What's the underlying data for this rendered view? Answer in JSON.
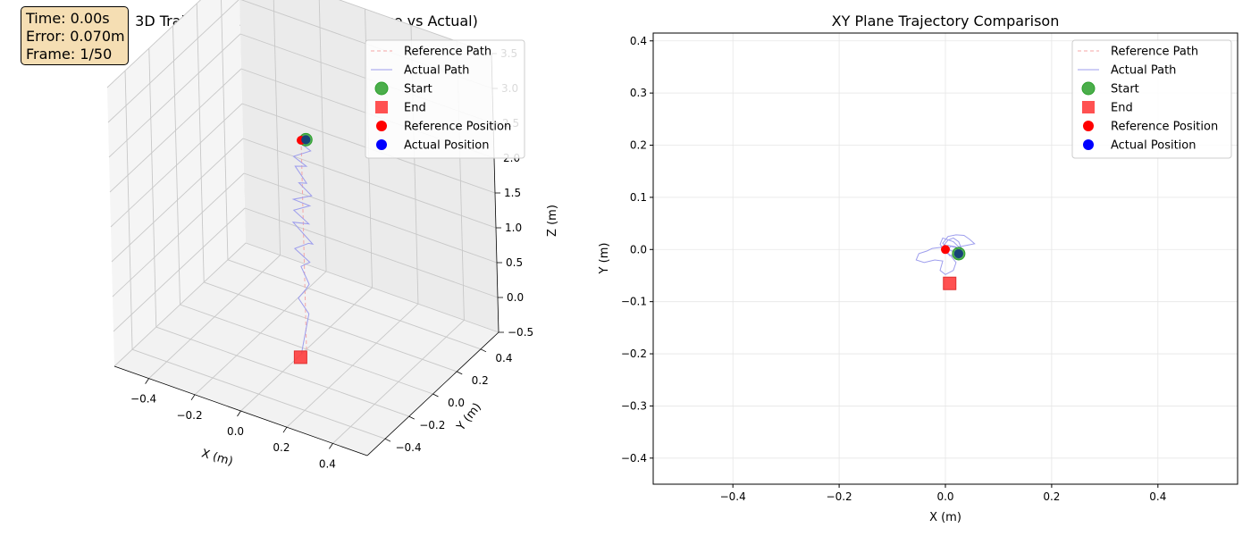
{
  "info_box": {
    "time": "Time: 0.00s",
    "error": "Error: 0.070m",
    "frame": "Frame: 1/50"
  },
  "legend_entries": [
    {
      "label": "Reference Path",
      "kind": "dash-line",
      "color": "#f4a6a6"
    },
    {
      "label": "Actual Path",
      "kind": "line",
      "color": "#9d9ded"
    },
    {
      "label": "Start",
      "kind": "circle",
      "color": "#2ca02c"
    },
    {
      "label": "End",
      "kind": "square",
      "color": "#ff3333"
    },
    {
      "label": "Reference Position",
      "kind": "dot",
      "color": "#ff0000"
    },
    {
      "label": "Actual Position",
      "kind": "dot",
      "color": "#0000ff"
    }
  ],
  "chart_data": [
    {
      "type": "scatter",
      "projection": "3d",
      "title": "3D Trajectory Comparison (Reference vs Actual)",
      "xlabel": "X (m)",
      "ylabel": "Y (m)",
      "zlabel": "Z (m)",
      "xlim": [
        -0.55,
        0.55
      ],
      "ylim": [
        -0.55,
        0.55
      ],
      "zlim": [
        -0.5,
        3.5
      ],
      "x_ticks": [
        "−0.4",
        "−0.2",
        "0.0",
        "0.2",
        "0.4"
      ],
      "y_ticks": [
        "−0.4",
        "−0.2",
        "0.0",
        "0.2",
        "0.4"
      ],
      "z_ticks": [
        "−0.5",
        "0.0",
        "0.5",
        "1.0",
        "1.5",
        "2.0",
        "2.5",
        "3.0",
        "3.5"
      ],
      "grid": true,
      "legend_position": "top-right",
      "series": [
        {
          "name": "Reference Path",
          "style": "dashed",
          "color": "#f4a6a6",
          "x": [
            0.0,
            0.0,
            0.0,
            0.0,
            0.0,
            0.0,
            0.0
          ],
          "y": [
            0.0,
            0.0,
            0.0,
            0.0,
            0.0,
            0.0,
            0.0
          ],
          "z": [
            2.5,
            2.0,
            1.5,
            1.0,
            0.5,
            0.0,
            -0.5
          ]
        },
        {
          "name": "Actual Path",
          "style": "solid",
          "color": "#9d9ded",
          "x": [
            0.02,
            -0.02,
            0.03,
            -0.03,
            0.02,
            -0.04,
            0.03,
            -0.02,
            0.04,
            -0.03,
            0.02,
            -0.04,
            0.03,
            -0.05,
            0.05,
            0.01,
            -0.04,
            0.03,
            -0.02,
            0.03,
            0.0,
            -0.03,
            0.02,
            0.01
          ],
          "y": [
            -0.01,
            0.01,
            0.02,
            -0.01,
            0.0,
            0.02,
            -0.02,
            0.01,
            0.0,
            -0.02,
            0.02,
            0.0,
            -0.01,
            0.01,
            -0.02,
            0.02,
            0.0,
            -0.01,
            0.01,
            -0.02,
            0.01,
            0.0,
            -0.01,
            -0.06
          ],
          "z": [
            2.55,
            2.45,
            2.35,
            2.25,
            2.15,
            2.05,
            1.95,
            1.85,
            1.75,
            1.65,
            1.55,
            1.45,
            1.35,
            1.25,
            1.1,
            1.0,
            0.9,
            0.8,
            0.65,
            0.5,
            0.35,
            0.2,
            0.05,
            -0.45
          ]
        },
        {
          "name": "Start",
          "marker": "circle",
          "color": "#2ca02c",
          "x": [
            0.025
          ],
          "y": [
            -0.008
          ],
          "z": [
            2.55
          ]
        },
        {
          "name": "End",
          "marker": "square",
          "color": "#ff3333",
          "x": [
            0.008
          ],
          "y": [
            -0.065
          ],
          "z": [
            -0.5
          ]
        },
        {
          "name": "Reference Position",
          "marker": "dot",
          "color": "#ff0000",
          "x": [
            0.0
          ],
          "y": [
            0.0
          ],
          "z": [
            2.5
          ]
        },
        {
          "name": "Actual Position",
          "marker": "dot",
          "color": "#0000ff",
          "x": [
            0.025
          ],
          "y": [
            -0.008
          ],
          "z": [
            2.55
          ]
        }
      ]
    },
    {
      "type": "scatter",
      "title": "XY Plane Trajectory Comparison",
      "xlabel": "X (m)",
      "ylabel": "Y (m)",
      "xlim": [
        -0.55,
        0.55
      ],
      "ylim": [
        -0.45,
        0.415
      ],
      "x_ticks": [
        -0.4,
        -0.2,
        0.0,
        0.2,
        0.4
      ],
      "y_ticks": [
        -0.4,
        -0.3,
        -0.2,
        -0.1,
        0.0,
        0.1,
        0.2,
        0.3,
        0.4
      ],
      "grid": true,
      "legend_position": "top-right",
      "series": [
        {
          "name": "Reference Path",
          "style": "dashed",
          "color": "#f4a6a6",
          "x": [
            0.0,
            0.0
          ],
          "y": [
            0.0,
            0.0
          ]
        },
        {
          "name": "Actual Path",
          "style": "solid",
          "color": "#9d9ded",
          "x": [
            0.025,
            0.01,
            -0.005,
            0.005,
            0.02,
            0.035,
            0.045,
            0.055,
            0.04,
            0.025,
            0.015,
            -0.005,
            -0.01,
            0.0,
            0.01,
            0.025,
            0.03,
            0.02,
            0.005,
            -0.01,
            -0.025,
            -0.035,
            -0.05,
            -0.055,
            -0.04,
            -0.02,
            -0.005,
            -0.01,
            0.0,
            0.015,
            0.02,
            0.01,
            0.0,
            -0.003,
            0.005,
            0.015,
            0.025,
            0.03,
            0.02,
            0.008,
            0.002,
            0.01,
            0.02,
            0.025
          ],
          "y": [
            -0.008,
            -0.002,
            0.012,
            0.025,
            0.028,
            0.027,
            0.02,
            0.011,
            0.008,
            0.005,
            0.015,
            0.022,
            0.01,
            -0.005,
            -0.012,
            -0.018,
            -0.01,
            0.005,
            0.008,
            0.004,
            0.002,
            -0.003,
            -0.008,
            -0.02,
            -0.025,
            -0.02,
            -0.022,
            -0.04,
            -0.048,
            -0.04,
            -0.025,
            -0.012,
            -0.002,
            0.008,
            0.018,
            0.022,
            0.015,
            0.002,
            -0.008,
            -0.012,
            -0.003,
            0.006,
            0.004,
            -0.008
          ]
        },
        {
          "name": "Start",
          "marker": "circle",
          "color": "#2ca02c",
          "x": [
            0.025
          ],
          "y": [
            -0.008
          ]
        },
        {
          "name": "End",
          "marker": "square",
          "color": "#ff3333",
          "x": [
            0.008
          ],
          "y": [
            -0.065
          ]
        },
        {
          "name": "Reference Position",
          "marker": "dot",
          "color": "#ff0000",
          "x": [
            0.0
          ],
          "y": [
            0.0
          ]
        },
        {
          "name": "Actual Position",
          "marker": "dot",
          "color": "#0000ff",
          "x": [
            0.025
          ],
          "y": [
            -0.008
          ]
        }
      ]
    }
  ]
}
